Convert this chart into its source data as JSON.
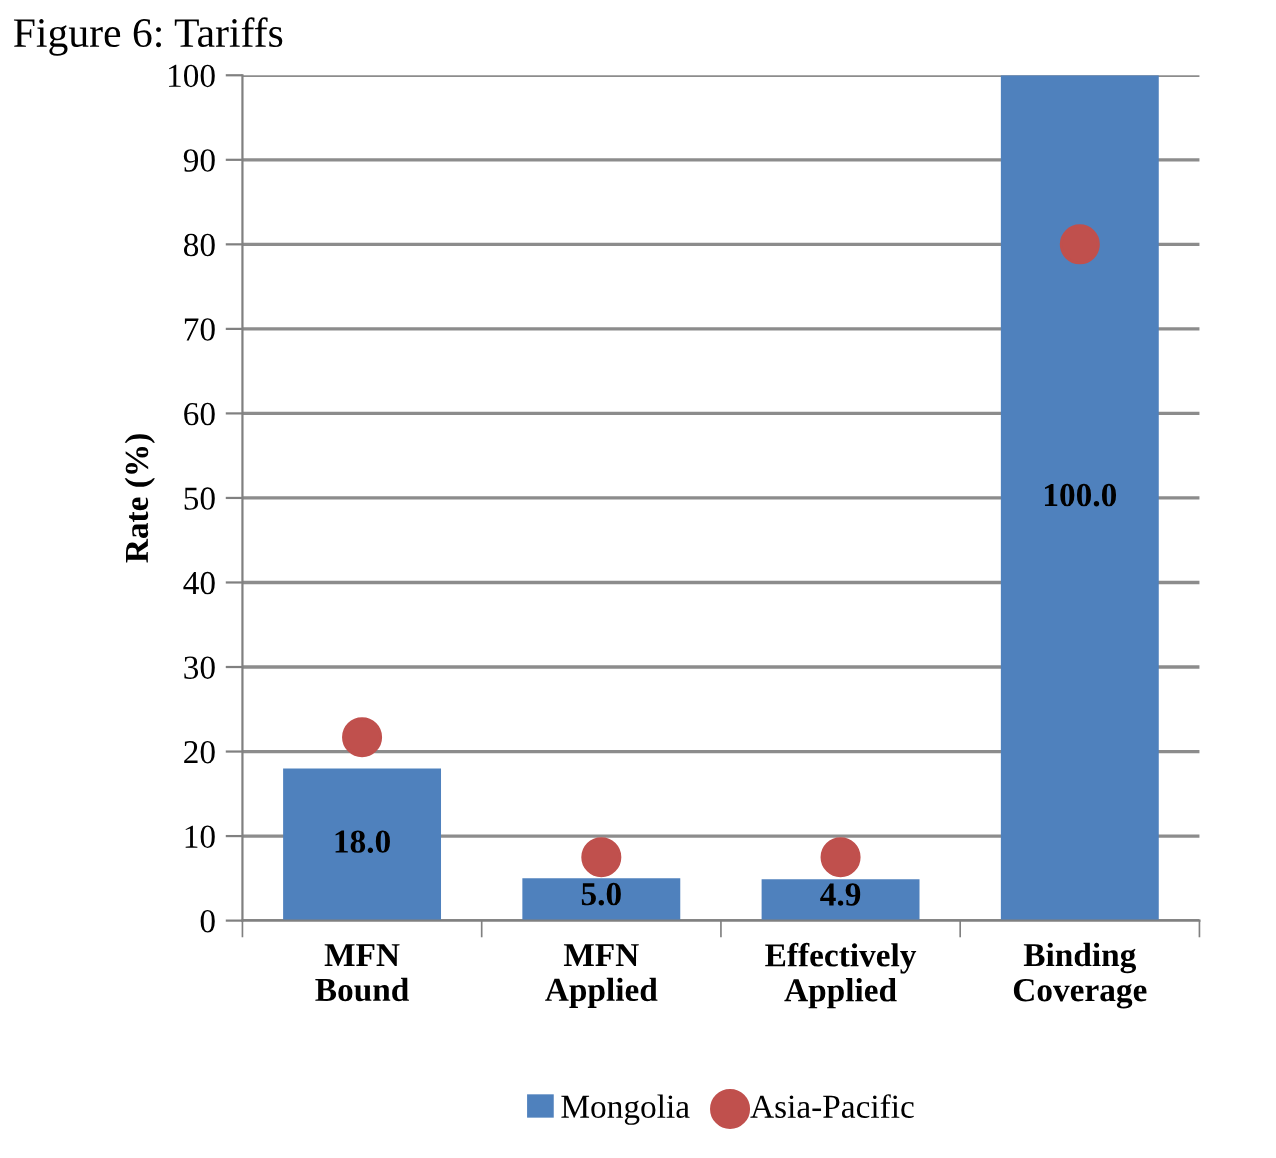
{
  "chart_data": {
    "type": "bar",
    "title": "Figure 6: Tariffs",
    "ylabel": "Rate (%)",
    "categories": [
      "MFN\nBound",
      "MFN\nApplied",
      "Effectively\nApplied",
      "Binding\nCoverage"
    ],
    "series": [
      {
        "name": "Mongolia",
        "color": "#4f81bd",
        "values": [
          18.0,
          5.0,
          4.9,
          100.0
        ],
        "value_labels": [
          "18.0",
          "5.0",
          "4.9",
          "100.0"
        ]
      },
      {
        "name": "Asia-Pacific",
        "type": "scatter",
        "marker": "circle",
        "color": "#c0504d",
        "values": [
          21.7,
          7.5,
          7.5,
          80
        ]
      }
    ],
    "ylim": [
      0,
      100
    ],
    "yticks": [
      0,
      10,
      20,
      30,
      40,
      50,
      60,
      70,
      80,
      90,
      100
    ],
    "grid": "y",
    "legend": "bottom"
  }
}
